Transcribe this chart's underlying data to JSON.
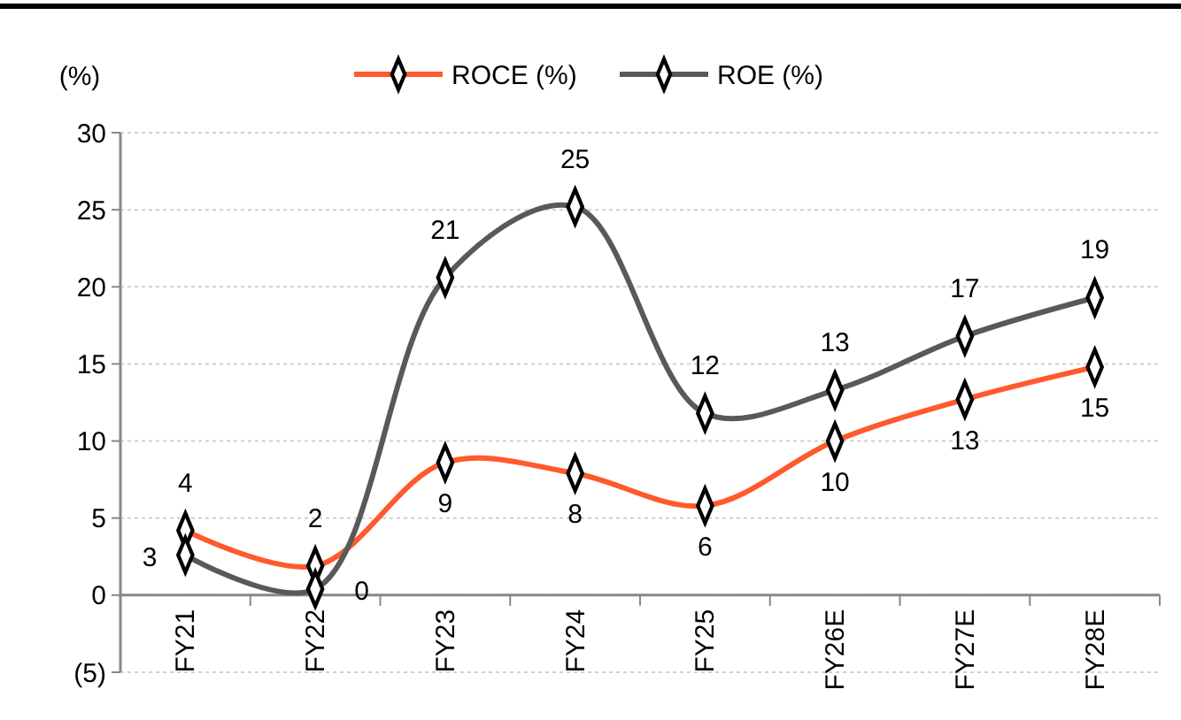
{
  "chart_data": {
    "type": "line",
    "ylabel": "(%)",
    "categories": [
      "FY21",
      "FY22",
      "FY23",
      "FY24",
      "FY25",
      "FY26E",
      "FY27E",
      "FY28E"
    ],
    "series": [
      {
        "name": "ROCE (%)",
        "color": "#ff5a2d",
        "values": [
          4.2,
          1.9,
          8.6,
          7.9,
          5.8,
          10.0,
          12.7,
          14.8
        ],
        "value_labels": [
          "4",
          "2",
          "9",
          "8",
          "6",
          "10",
          "13",
          "15"
        ]
      },
      {
        "name": "ROE (%)",
        "color": "#595959",
        "values": [
          2.6,
          0.4,
          20.6,
          25.2,
          11.8,
          13.3,
          16.8,
          19.3
        ],
        "value_labels": [
          "3",
          "0",
          "21",
          "25",
          "12",
          "13",
          "17",
          "19"
        ]
      }
    ],
    "ylim": [
      -5,
      30
    ],
    "yticks": [
      {
        "value": -5,
        "label": "(5)"
      },
      0,
      5,
      10,
      15,
      20,
      25,
      30
    ],
    "grid": "y",
    "legend": "top",
    "marker": "diamond"
  }
}
